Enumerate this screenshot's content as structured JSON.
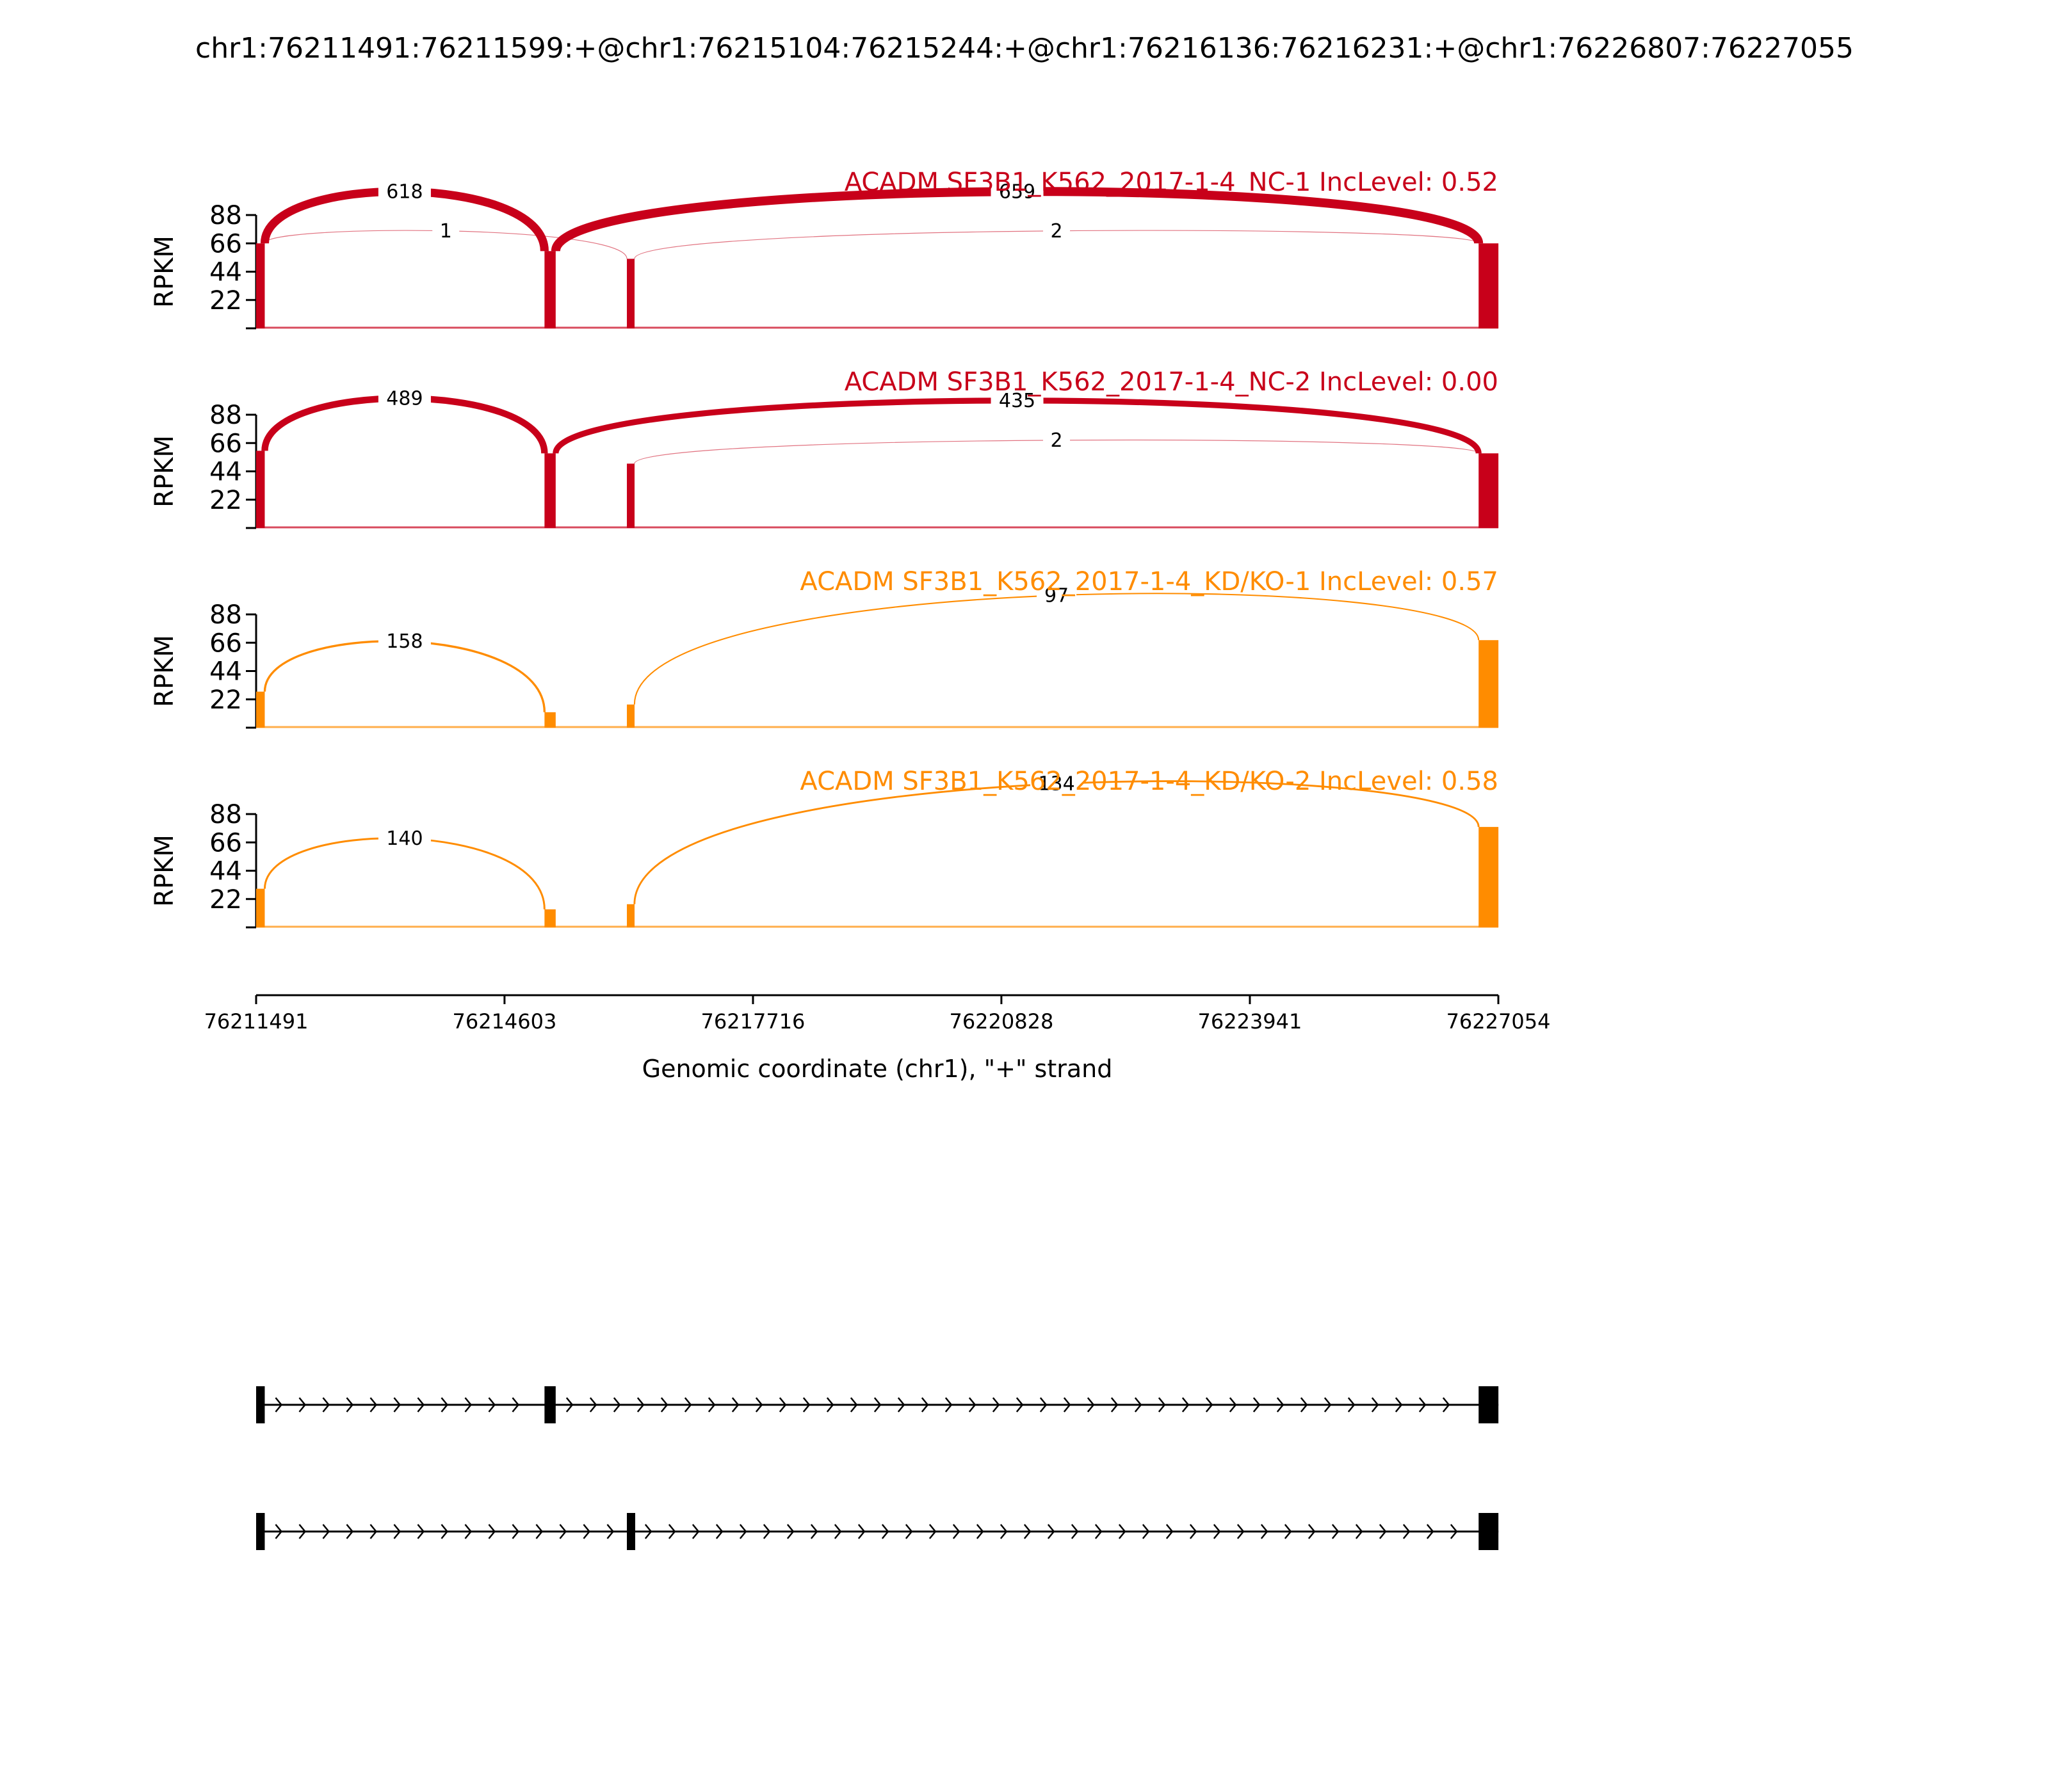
{
  "title": "chr1:76211491:76211599:+@chr1:76215104:76215244:+@chr1:76216136:76216231:+@chr1:76226807:76227055",
  "colors": {
    "nc": "#c8001a",
    "kd": "#ff8c00",
    "axis": "#000000",
    "exon": "#000000"
  },
  "chart_data": {
    "type": "sashimi",
    "xlim": [
      76211491,
      76227054
    ],
    "xticks": [
      76211491,
      76214603,
      76217716,
      76220828,
      76223941,
      76227054
    ],
    "xtick_labels": [
      "76211491",
      "76214603",
      "76217716",
      "76220828",
      "76223941",
      "76227054"
    ],
    "xlabel": "Genomic coordinate (chr1), \"+\" strand",
    "ylabel": "RPKM",
    "ylim": [
      0,
      88
    ],
    "yticks": [
      22,
      44,
      66,
      88
    ],
    "ytick_labels": [
      "22",
      "44",
      "66",
      "88"
    ],
    "exons": [
      {
        "start": 76211491,
        "end": 76211599
      },
      {
        "start": 76215104,
        "end": 76215244
      },
      {
        "start": 76216136,
        "end": 76216231
      },
      {
        "start": 76226807,
        "end": 76227055
      }
    ],
    "panels": [
      {
        "label": "ACADM SF3B1_K562_2017-1-4_NC-1 IncLevel: 0.52",
        "color_key": "nc",
        "exon_heights": [
          66,
          60,
          54,
          66
        ],
        "junctions": [
          {
            "from": 76211599,
            "to": 76215104,
            "count": 618,
            "label": "618",
            "side": "top"
          },
          {
            "from": 76211599,
            "to": 76216136,
            "count": 1,
            "label": "1",
            "side": "top"
          },
          {
            "from": 76215244,
            "to": 76226807,
            "count": 659,
            "label": "659",
            "side": "top"
          },
          {
            "from": 76216231,
            "to": 76226807,
            "count": 2,
            "label": "2",
            "side": "top"
          }
        ]
      },
      {
        "label": "ACADM SF3B1_K562_2017-1-4_NC-2 IncLevel: 0.00",
        "color_key": "nc",
        "exon_heights": [
          60,
          58,
          50,
          58
        ],
        "junctions": [
          {
            "from": 76211599,
            "to": 76215104,
            "count": 489,
            "label": "489",
            "side": "top"
          },
          {
            "from": 76215244,
            "to": 76226807,
            "count": 435,
            "label": "435",
            "side": "top"
          },
          {
            "from": 76216231,
            "to": 76226807,
            "count": 2,
            "label": "2",
            "side": "top"
          }
        ]
      },
      {
        "label": "ACADM SF3B1_K562_2017-1-4_KD/KO-1 IncLevel: 0.57",
        "color_key": "kd",
        "exon_heights": [
          28,
          12,
          18,
          68
        ],
        "junctions": [
          {
            "from": 76211599,
            "to": 76215104,
            "count": 158,
            "label": "158",
            "side": "top"
          },
          {
            "from": 76216231,
            "to": 76226807,
            "count": 97,
            "label": "97",
            "side": "top"
          }
        ]
      },
      {
        "label": "ACADM SF3B1_K562_2017-1-4_KD/KO-2 IncLevel: 0.58",
        "color_key": "kd",
        "exon_heights": [
          30,
          14,
          18,
          78
        ],
        "junctions": [
          {
            "from": 76211599,
            "to": 76215104,
            "count": 140,
            "label": "140",
            "side": "top"
          },
          {
            "from": 76216231,
            "to": 76226807,
            "count": 134,
            "label": "134",
            "side": "top"
          }
        ]
      }
    ],
    "transcripts": [
      {
        "exons": [
          [
            76211491,
            76211599
          ],
          [
            76215104,
            76215244
          ],
          [
            76226807,
            76227055
          ]
        ]
      },
      {
        "exons": [
          [
            76211491,
            76211599
          ],
          [
            76216136,
            76216231
          ],
          [
            76226807,
            76227055
          ]
        ]
      }
    ]
  }
}
